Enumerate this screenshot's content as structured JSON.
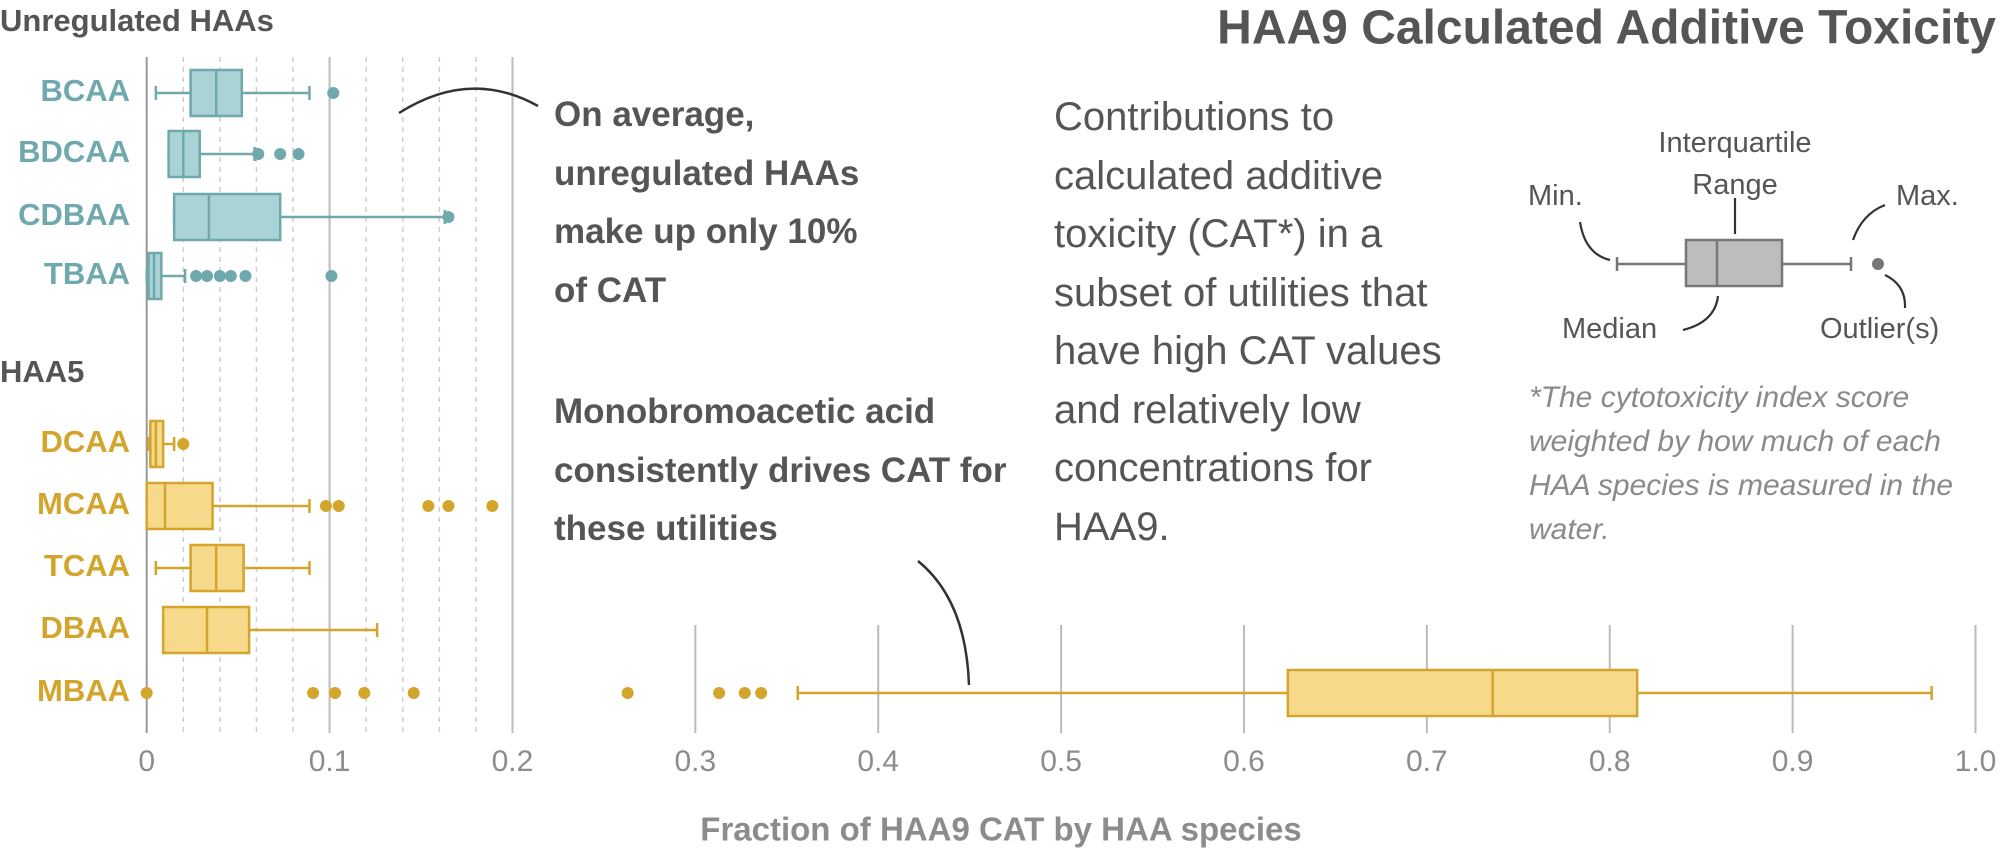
{
  "chart_data": {
    "type": "box",
    "title": "HAA9 Calculated Additive Toxicity",
    "xlabel": "Fraction of HAA9 CAT by HAA species",
    "xlim": [
      0,
      1
    ],
    "xticks": [
      0,
      0.1,
      0.2,
      0.3,
      0.4,
      0.5,
      0.6,
      0.7,
      0.8,
      0.9,
      {
        "value": 1,
        "label": "1.0"
      }
    ],
    "minor_xticks": [
      0.02,
      0.04,
      0.06,
      0.08,
      0.12,
      0.14,
      0.16,
      0.18
    ],
    "grid": true,
    "groups": [
      {
        "name": "Unregulated HAAs",
        "color": "#6fa8ad",
        "fill": "#a9d3d4",
        "boxes": [
          {
            "label": "BCAA",
            "min": 0.005,
            "q1": 0.024,
            "median": 0.038,
            "q3": 0.052,
            "max": 0.089,
            "outliers": [
              0.102
            ]
          },
          {
            "label": "BDCAA",
            "min": 0.012,
            "q1": 0.012,
            "median": 0.02,
            "q3": 0.029,
            "max": 0.059,
            "outliers": [
              0.061,
              0.073,
              0.083
            ]
          },
          {
            "label": "CDBAA",
            "min": 0.015,
            "q1": 0.015,
            "median": 0.034,
            "q3": 0.073,
            "max": 0.163,
            "outliers": [
              0.165
            ]
          },
          {
            "label": "TBAA",
            "min": 0,
            "q1": 0.001,
            "median": 0.004,
            "q3": 0.008,
            "max": 0.021,
            "outliers": [
              0.027,
              0.033,
              0.04,
              0.046,
              0.054,
              0.101
            ]
          }
        ]
      },
      {
        "name": "HAA5",
        "color": "#d4a52c",
        "fill": "#f6d98b",
        "boxes": [
          {
            "label": "DCAA",
            "min": 0.001,
            "q1": 0.002,
            "median": 0.005,
            "q3": 0.009,
            "max": 0.015,
            "outliers": [
              0.02
            ]
          },
          {
            "label": "MCAA",
            "min": 0,
            "q1": 0,
            "median": 0.01,
            "q3": 0.036,
            "max": 0.089,
            "outliers": [
              0.098,
              0.105,
              0.154,
              0.165,
              0.189
            ]
          },
          {
            "label": "TCAA",
            "min": 0.005,
            "q1": 0.024,
            "median": 0.038,
            "q3": 0.053,
            "max": 0.089,
            "outliers": []
          },
          {
            "label": "DBAA",
            "min": 0.009,
            "q1": 0.009,
            "median": 0.033,
            "q3": 0.056,
            "max": 0.126,
            "outliers": []
          },
          {
            "label": "MBAA",
            "min": 0.356,
            "q1": 0.624,
            "median": 0.736,
            "q3": 0.815,
            "max": 0.976,
            "outliers": [
              0,
              0.091,
              0.103,
              0.119,
              0.146,
              0.263,
              0.313,
              0.327,
              0.336
            ]
          }
        ]
      }
    ],
    "annotations": [
      "On average, unregulated HAAs make up only 10% of CAT",
      "Monobromoacetic acid consistently drives CAT for these utilities"
    ],
    "description": "Contributions to calculated additive toxicity (CAT*) in a subset of utilities that have high CAT values and relatively low concentrations for HAA9.",
    "footnote": "*The cytotoxicity index score weighted by how much of each HAA species is measured in the water.",
    "legend_labels": {
      "min": "Min.",
      "iqr": "Interquartile Range",
      "max": "Max.",
      "median": "Median",
      "outliers": "Outlier(s)"
    }
  }
}
